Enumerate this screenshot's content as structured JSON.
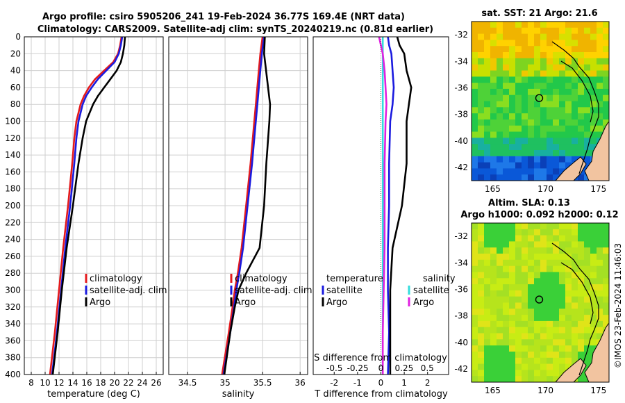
{
  "header": {
    "title_line1": "Argo profile: csiro 5905206_241 19-Feb-2024 36.77S 169.4E (NRT data)",
    "title_line2": "Climatology: CARS2009. Satellite-adj clim: synTS_20240219.nc (0.81d earlier)"
  },
  "colors": {
    "climatology": "#e41a1c",
    "satellite": "#1a1adf",
    "argo": "#000000",
    "sat_salinity": "#33dddd",
    "argo_salinity": "#e020e0",
    "land": "#f2c4a0",
    "grid": "#cfcfcf"
  },
  "chart_data": [
    {
      "type": "line",
      "id": "temperature",
      "xlabel": "temperature (deg C)",
      "ylabel": "",
      "xlim": [
        7,
        27
      ],
      "ylim": [
        400,
        0
      ],
      "xticks": [
        "8",
        "10",
        "12",
        "14",
        "16",
        "18",
        "20",
        "22",
        "24",
        "26"
      ],
      "xtick_values": [
        8,
        10,
        12,
        14,
        16,
        18,
        20,
        22,
        24,
        26
      ],
      "yticks": [
        "0",
        "20",
        "40",
        "60",
        "80",
        "100",
        "120",
        "140",
        "160",
        "180",
        "200",
        "220",
        "240",
        "260",
        "280",
        "300",
        "320",
        "340",
        "360",
        "380",
        "400"
      ],
      "ytick_values": [
        0,
        20,
        40,
        60,
        80,
        100,
        120,
        140,
        160,
        180,
        200,
        220,
        240,
        260,
        280,
        300,
        320,
        340,
        360,
        380,
        400
      ],
      "grid": true,
      "legend": [
        "climatology",
        "satellite-adj. clim",
        "Argo"
      ],
      "depth": [
        0,
        10,
        20,
        30,
        40,
        50,
        60,
        70,
        80,
        90,
        100,
        120,
        150,
        200,
        250,
        300,
        350,
        400
      ],
      "series": [
        {
          "name": "climatology",
          "color_key": "climatology",
          "values": [
            21.0,
            20.8,
            20.5,
            19.8,
            18.5,
            17.2,
            16.3,
            15.6,
            15.1,
            14.8,
            14.5,
            14.2,
            13.9,
            13.3,
            12.6,
            12.0,
            11.4,
            10.7
          ]
        },
        {
          "name": "satellite-adj. clim",
          "color_key": "satellite",
          "values": [
            21.1,
            20.9,
            20.6,
            20.0,
            18.8,
            17.6,
            16.7,
            15.9,
            15.4,
            15.1,
            14.8,
            14.5,
            14.2,
            13.6,
            12.9,
            12.3,
            11.7,
            11.0
          ]
        },
        {
          "name": "Argo",
          "color_key": "argo",
          "values": [
            21.5,
            21.4,
            21.2,
            20.9,
            20.3,
            19.4,
            18.5,
            17.6,
            16.9,
            16.4,
            15.9,
            15.4,
            14.8,
            14.0,
            13.1,
            12.4,
            11.8,
            11.1
          ]
        }
      ]
    },
    {
      "type": "line",
      "id": "salinity",
      "xlabel": "salinity",
      "xlim": [
        34.25,
        36.1
      ],
      "ylim": [
        400,
        0
      ],
      "xticks": [
        "34.5",
        "35",
        "35.5",
        "36"
      ],
      "xtick_values": [
        34.5,
        35,
        35.5,
        36
      ],
      "grid": true,
      "legend": [
        "climatology",
        "satellite-adj. clim",
        "Argo"
      ],
      "depth": [
        0,
        20,
        50,
        80,
        100,
        150,
        200,
        250,
        280,
        300,
        320,
        350,
        400
      ],
      "series": [
        {
          "name": "climatology",
          "color_key": "climatology",
          "values": [
            35.5,
            35.47,
            35.44,
            35.41,
            35.39,
            35.34,
            35.28,
            35.22,
            35.17,
            35.13,
            35.1,
            35.05,
            34.96
          ]
        },
        {
          "name": "satellite-adj. clim",
          "color_key": "satellite",
          "values": [
            35.52,
            35.49,
            35.46,
            35.43,
            35.41,
            35.36,
            35.3,
            35.24,
            35.19,
            35.15,
            35.12,
            35.07,
            34.98
          ]
        },
        {
          "name": "Argo",
          "color_key": "argo",
          "values": [
            35.53,
            35.52,
            35.56,
            35.6,
            35.59,
            35.55,
            35.52,
            35.46,
            35.28,
            35.18,
            35.13,
            35.07,
            34.99
          ]
        }
      ]
    },
    {
      "type": "line",
      "id": "difference",
      "xlabel": "T difference from climatology",
      "xlabel_top": "S difference from climatology",
      "xlim": [
        -2.9,
        2.9
      ],
      "ylim": [
        400,
        0
      ],
      "xticks": [
        "-2",
        "-1",
        "0",
        "1",
        "2"
      ],
      "xtick_values": [
        -2,
        -1,
        0,
        1,
        2
      ],
      "s_ticks": [
        "-0.5",
        "-0.25",
        "0",
        "0.25",
        "0.5"
      ],
      "s_tick_values": [
        -0.5,
        -0.25,
        0,
        0.25,
        0.5
      ],
      "s_xlim": [
        -0.73,
        0.73
      ],
      "grid": false,
      "legend_temperature_title": "temperature",
      "legend_temperature": [
        "satellite",
        "Argo"
      ],
      "legend_salinity_title": "salinity",
      "legend_salinity": [
        "satellite",
        "Argo"
      ],
      "depth": [
        0,
        10,
        20,
        40,
        60,
        80,
        100,
        150,
        200,
        250,
        300,
        350,
        400
      ],
      "series": [
        {
          "name": "T satellite",
          "color_key": "satellite",
          "values": [
            0.3,
            0.35,
            0.45,
            0.5,
            0.55,
            0.5,
            0.4,
            0.35,
            0.35,
            0.3,
            0.3,
            0.35,
            0.3
          ]
        },
        {
          "name": "T Argo",
          "color_key": "argo",
          "values": [
            0.7,
            0.8,
            1.0,
            1.1,
            1.3,
            1.2,
            1.1,
            1.1,
            0.9,
            0.5,
            0.4,
            0.4,
            0.4
          ]
        },
        {
          "name": "S satellite",
          "color_key": "sat_salinity",
          "values": [
            0.02,
            0.02,
            0.02,
            0.02,
            0.02,
            0.02,
            0.02,
            0.02,
            0.02,
            0.02,
            0.02,
            0.02,
            0.02
          ]
        },
        {
          "name": "S Argo",
          "color_key": "argo_salinity",
          "values": [
            -0.02,
            0.0,
            0.02,
            0.04,
            0.05,
            0.06,
            0.05,
            0.04,
            0.04,
            0.04,
            0.03,
            0.02,
            0.02
          ]
        }
      ]
    }
  ],
  "maps": [
    {
      "id": "sst-map",
      "title": "sat. SST: 21 Argo: 21.6",
      "xticks": [
        "165",
        "170",
        "175"
      ],
      "xtick_values": [
        165,
        170,
        175
      ],
      "yticks": [
        "-32",
        "-34",
        "-36",
        "-38",
        "-40",
        "-42"
      ],
      "ytick_values": [
        -32,
        -34,
        -36,
        -38,
        -40,
        -42
      ],
      "lon_range": [
        163,
        176
      ],
      "lat_range": [
        -43,
        -31
      ],
      "marker": {
        "lon": 169.4,
        "lat": -36.77
      }
    },
    {
      "id": "sla-map",
      "title_line1": "Altim. SLA: 0.13",
      "title_line2": "Argo h1000: 0.092 h2000: 0.12",
      "xticks": [
        "165",
        "170",
        "175"
      ],
      "xtick_values": [
        165,
        170,
        175
      ],
      "yticks": [
        "-32",
        "-34",
        "-36",
        "-38",
        "-40",
        "-42"
      ],
      "ytick_values": [
        -32,
        -34,
        -36,
        -38,
        -40,
        -42
      ],
      "lon_range": [
        163,
        176
      ],
      "lat_range": [
        -43,
        -31
      ],
      "marker": {
        "lon": 169.4,
        "lat": -36.77
      }
    }
  ],
  "copyright": "©IMOS 23-Feb-2024 11:46:03"
}
